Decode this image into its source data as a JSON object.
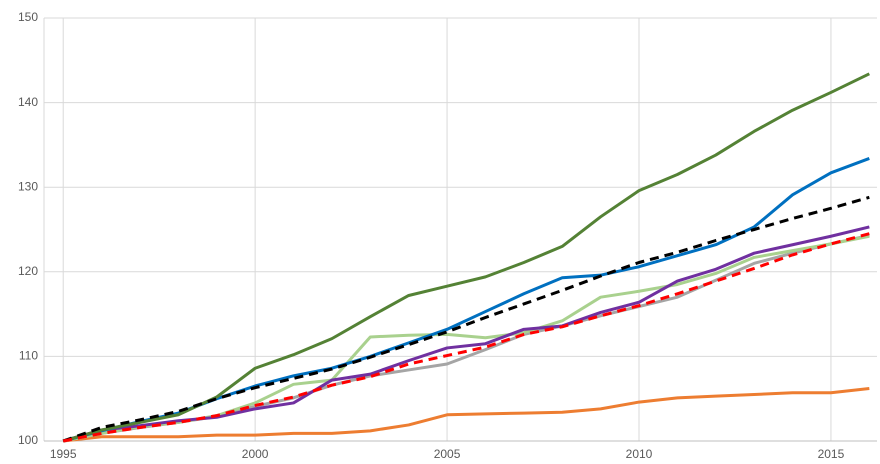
{
  "chart_data": {
    "type": "line",
    "x": [
      1995,
      1996,
      1997,
      1998,
      1999,
      2000,
      2001,
      2002,
      2003,
      2004,
      2005,
      2006,
      2007,
      2008,
      2009,
      2010,
      2011,
      2012,
      2013,
      2014,
      2015,
      2016
    ],
    "xlim": [
      1994.5,
      2016.2
    ],
    "xticks": [
      1995,
      2000,
      2005,
      2010,
      2015
    ],
    "ylim": [
      100,
      150
    ],
    "yticks": [
      100,
      110,
      120,
      130,
      140,
      150
    ],
    "grid": true,
    "series": [
      {
        "color": "#ed7d31",
        "dash": false,
        "values": [
          100,
          100.5,
          100.5,
          100.5,
          100.7,
          100.7,
          100.9,
          100.9,
          101.2,
          101.9,
          103.1,
          103.2,
          103.3,
          103.4,
          103.8,
          104.6,
          105.1,
          105.3,
          105.5,
          105.7,
          105.7,
          106.2
        ]
      },
      {
        "color": "#a5a5a5",
        "dash": false,
        "values": [
          100,
          100.9,
          101.6,
          102.2,
          102.9,
          104.1,
          105.1,
          106.6,
          107.7,
          108.4,
          109.1,
          110.8,
          112.6,
          113.6,
          114.8,
          115.9,
          117,
          119,
          121,
          122.2,
          123.3,
          124.3
        ]
      },
      {
        "color": "#a9d18e",
        "dash": false,
        "values": [
          100,
          100.9,
          101.7,
          102.2,
          103,
          104.5,
          106.7,
          107.2,
          112.3,
          112.5,
          112.6,
          112.2,
          112.8,
          114.2,
          117,
          117.7,
          118.5,
          119.8,
          121.7,
          122.5,
          123.3,
          124.2
        ]
      },
      {
        "color": "#7030a0",
        "dash": false,
        "values": [
          100,
          101.3,
          101.8,
          102.4,
          102.8,
          103.8,
          104.5,
          107.2,
          107.9,
          109.5,
          111,
          111.5,
          113.2,
          113.6,
          115.2,
          116.4,
          118.9,
          120.3,
          122.2,
          123.2,
          124.2,
          125.3
        ]
      },
      {
        "color": "#0070c0",
        "dash": false,
        "values": [
          100,
          101.2,
          102.3,
          103.3,
          105,
          106.5,
          107.7,
          108.6,
          110,
          111.6,
          113.2,
          115.3,
          117.4,
          119.3,
          119.6,
          120.6,
          121.9,
          123.2,
          125.3,
          129.1,
          131.7,
          133.4
        ]
      },
      {
        "color": "#548235",
        "dash": false,
        "values": [
          100,
          101.3,
          102.2,
          103.1,
          105.2,
          108.6,
          110.2,
          112.1,
          114.7,
          117.2,
          118.3,
          119.4,
          121.1,
          123,
          126.5,
          129.6,
          131.5,
          133.8,
          136.6,
          139.1,
          141.2,
          143.4
        ]
      },
      {
        "color": "#000000",
        "dash": true,
        "values": [
          100,
          101.6,
          102.5,
          103.5,
          105,
          106.3,
          107.4,
          108.5,
          109.9,
          111.4,
          112.9,
          114.6,
          116.2,
          117.8,
          119.5,
          121.1,
          122.3,
          123.7,
          125,
          126.3,
          127.5,
          128.8
        ]
      },
      {
        "color": "#ff0000",
        "dash": true,
        "values": [
          100,
          100.9,
          101.6,
          102.2,
          103,
          104.2,
          105.2,
          106.6,
          107.6,
          109.1,
          110.1,
          111.1,
          112.6,
          113.5,
          114.8,
          116,
          117.4,
          118.9,
          120.4,
          122,
          123.3,
          124.5
        ]
      }
    ]
  }
}
